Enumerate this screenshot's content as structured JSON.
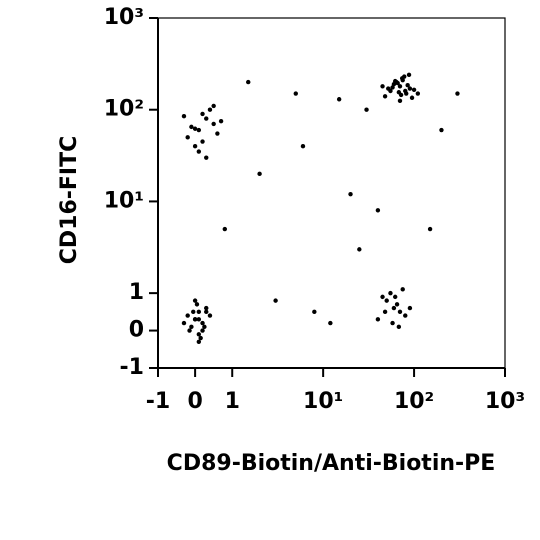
{
  "chart_data": {
    "type": "scatter",
    "xlabel": "CD89-Biotin/Anti-Biotin-PE",
    "ylabel": "CD16-FITC",
    "xscale": "biexponential",
    "yscale": "biexponential",
    "xlim": [
      -1,
      1000
    ],
    "ylim": [
      -1,
      1000
    ],
    "xticks": [
      -1,
      0,
      1,
      {
        "value": 10,
        "label": "10¹"
      },
      {
        "value": 100,
        "label": "10²"
      },
      {
        "value": 1000,
        "label": "10³"
      }
    ],
    "yticks": [
      -1,
      0,
      1,
      {
        "value": 10,
        "label": "10¹"
      },
      {
        "value": 100,
        "label": "10²"
      },
      {
        "value": 1000,
        "label": "10³"
      }
    ],
    "series": [
      {
        "color": "#000000",
        "x": [
          55,
          70,
          82,
          64,
          90,
          48,
          75,
          60,
          100,
          68,
          78,
          58,
          85,
          72,
          62,
          95,
          52,
          66,
          80,
          74,
          45,
          110,
          70,
          88,
          0.1,
          0.3,
          -0.2,
          0.5,
          0.0,
          0.2,
          0.6,
          -0.1,
          0.4,
          0.1,
          0.7,
          0.2,
          -0.3,
          0.3,
          0.0,
          0.5,
          0.0,
          0.1,
          -0.1,
          0.2,
          0.3,
          -0.2,
          0.1,
          0.0,
          0.2,
          -0.3,
          0.4,
          0.05,
          0.15,
          -0.05,
          0.25,
          0.1,
          0.0,
          -0.15,
          0.3,
          0.1,
          60,
          50,
          70,
          45,
          80,
          55,
          65,
          40,
          75,
          58,
          90,
          62,
          48,
          68,
          5,
          15,
          30,
          2,
          8,
          25,
          150,
          200,
          3,
          12,
          40,
          1.5,
          6,
          20,
          300,
          0.8
        ],
        "y": [
          160,
          180,
          150,
          200,
          170,
          140,
          210,
          190,
          165,
          155,
          230,
          175,
          185,
          145,
          205,
          135,
          170,
          195,
          160,
          220,
          180,
          150,
          125,
          240,
          60,
          80,
          50,
          70,
          40,
          90,
          55,
          65,
          100,
          35,
          75,
          45,
          85,
          30,
          62,
          110,
          0.3,
          0.5,
          0.1,
          0.2,
          0.6,
          0.4,
          -0.1,
          0.3,
          0.0,
          0.2,
          0.4,
          0.7,
          -0.2,
          0.5,
          0.1,
          0.3,
          0.8,
          0.0,
          0.5,
          -0.3,
          0.6,
          0.8,
          0.5,
          0.9,
          0.4,
          1.0,
          0.7,
          0.3,
          1.1,
          0.2,
          0.6,
          0.9,
          0.5,
          0.1,
          150,
          130,
          100,
          20,
          0.5,
          3,
          5,
          60,
          0.8,
          0.2,
          8,
          200,
          40,
          12,
          150,
          5
        ]
      }
    ]
  }
}
